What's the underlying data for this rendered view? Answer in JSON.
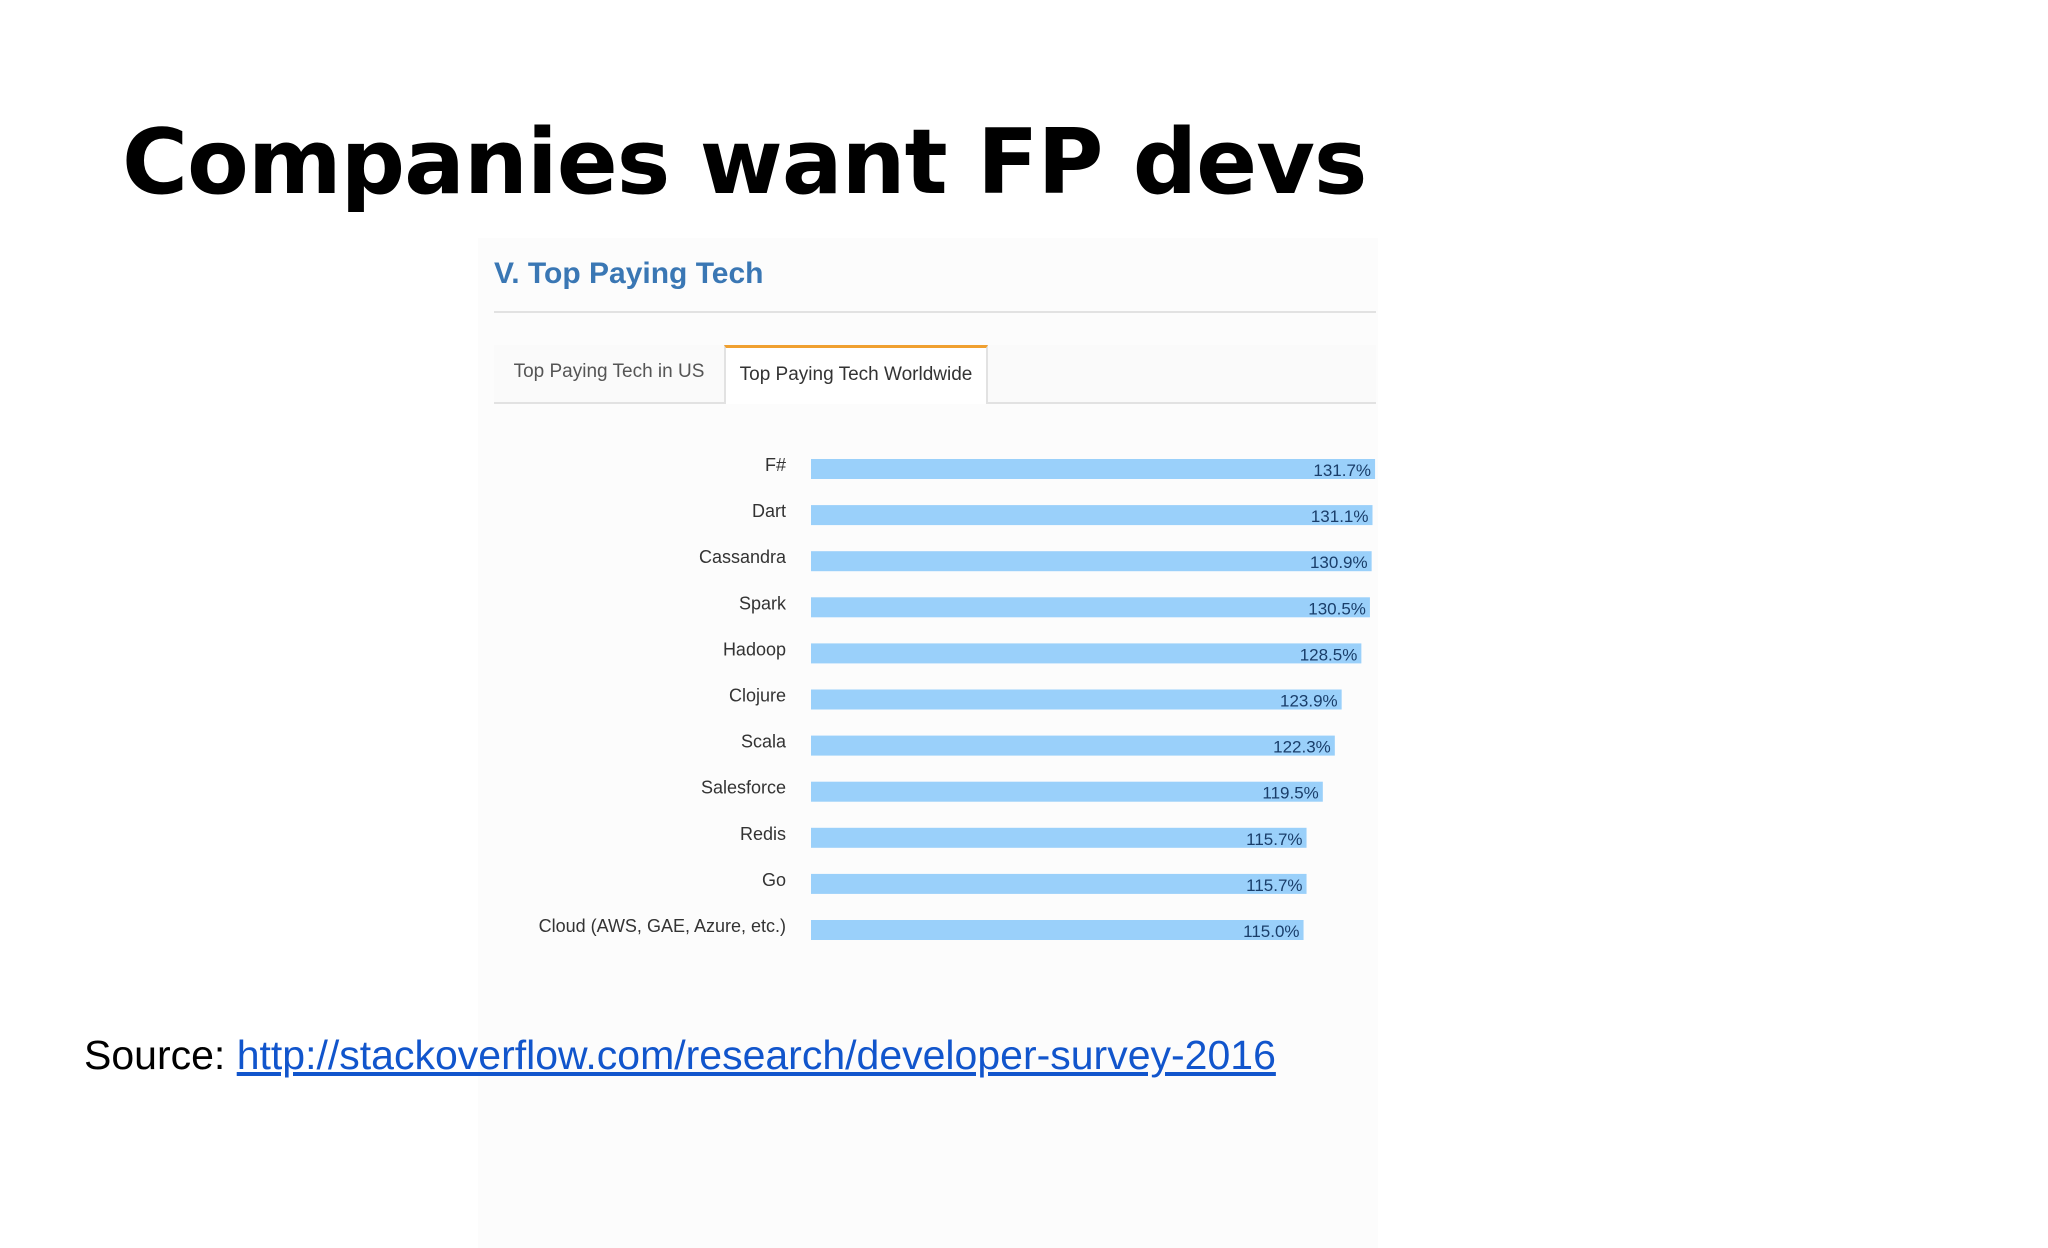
{
  "slide": {
    "title": "Companies want FP devs",
    "source_label": "Source:",
    "source_link": "http://stackoverflow.com/research/developer-survey-2016"
  },
  "section": {
    "title": "V. Top Paying Tech",
    "tabs": [
      {
        "label": "Top Paying Tech in US",
        "active": false
      },
      {
        "label": "Top Paying Tech Worldwide",
        "active": true
      }
    ]
  },
  "colors": {
    "bar": "#9ad0fa",
    "section_title": "#3a77b4",
    "tab_accent": "#f0a030",
    "link": "#1155cc"
  },
  "chart_data": {
    "type": "bar",
    "orientation": "horizontal",
    "categories": [
      "F#",
      "Dart",
      "Cassandra",
      "Spark",
      "Hadoop",
      "Clojure",
      "Scala",
      "Salesforce",
      "Redis",
      "Go",
      "Cloud (AWS, GAE, Azure, etc.)"
    ],
    "values": [
      131.7,
      131.1,
      130.9,
      130.5,
      128.5,
      123.9,
      122.3,
      119.5,
      115.7,
      115.7,
      115.0
    ],
    "value_labels": [
      "131.7%",
      "131.1%",
      "130.9%",
      "130.5%",
      "128.5%",
      "123.9%",
      "122.3%",
      "119.5%",
      "115.7%",
      "115.7%",
      "115.0%"
    ],
    "grid": false,
    "legend": "none"
  }
}
